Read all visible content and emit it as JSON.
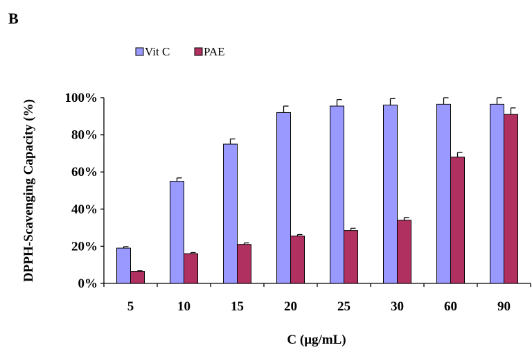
{
  "panel_label": "B",
  "chart_data": {
    "type": "bar",
    "title": "",
    "xlabel": "C (μg/mL)",
    "ylabel": "DPPH-Scavenging Capacity (%)",
    "categories": [
      "5",
      "10",
      "15",
      "20",
      "25",
      "30",
      "60",
      "90"
    ],
    "series": [
      {
        "name": "Vit C",
        "color": "#9999ff",
        "values": [
          19,
          55,
          75,
          92,
          95.5,
          96,
          96.5,
          96.5
        ],
        "errors": [
          0.8,
          1.8,
          2.8,
          3.5,
          3.5,
          3.5,
          3.5,
          3.5
        ]
      },
      {
        "name": "PAE",
        "color": "#b03060",
        "values": [
          6.5,
          16,
          21,
          25.5,
          28.5,
          34,
          68,
          91
        ],
        "errors": [
          0.3,
          0.6,
          0.8,
          0.8,
          1.2,
          1.5,
          2.5,
          3.5
        ]
      }
    ],
    "ylim": [
      0,
      100
    ],
    "yticks": [
      "0%",
      "20%",
      "40%",
      "60%",
      "80%",
      "100%"
    ],
    "legend_position": "top-left",
    "grid": false,
    "error_bars": true
  }
}
